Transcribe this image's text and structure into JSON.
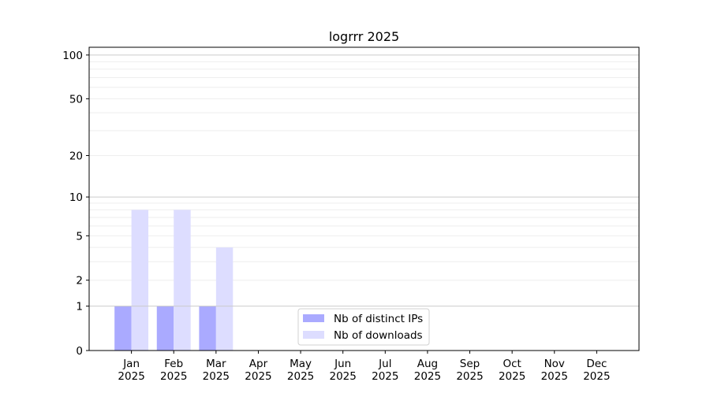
{
  "chart_data": {
    "type": "bar",
    "title": "logrrr 2025",
    "xlabel": "",
    "ylabel": "",
    "y_scale": "log(1+y)",
    "ylim": [
      0,
      113
    ],
    "y_ticks": [
      0,
      1,
      2,
      5,
      10,
      20,
      50,
      100
    ],
    "grid": true,
    "legend_placement": "lower-center",
    "categories": [
      "Jan\n2025",
      "Feb\n2025",
      "Mar\n2025",
      "Apr\n2025",
      "May\n2025",
      "Jun\n2025",
      "Jul\n2025",
      "Aug\n2025",
      "Sep\n2025",
      "Oct\n2025",
      "Nov\n2025",
      "Dec\n2025"
    ],
    "series": [
      {
        "name": "Nb of distinct IPs",
        "color": "#aaaaff",
        "values": [
          1,
          1,
          1,
          0,
          0,
          0,
          0,
          0,
          0,
          0,
          0,
          0
        ]
      },
      {
        "name": "Nb of downloads",
        "color": "#ddddff",
        "values": [
          8,
          8,
          4,
          0,
          0,
          0,
          0,
          0,
          0,
          0,
          0,
          0
        ]
      }
    ]
  }
}
